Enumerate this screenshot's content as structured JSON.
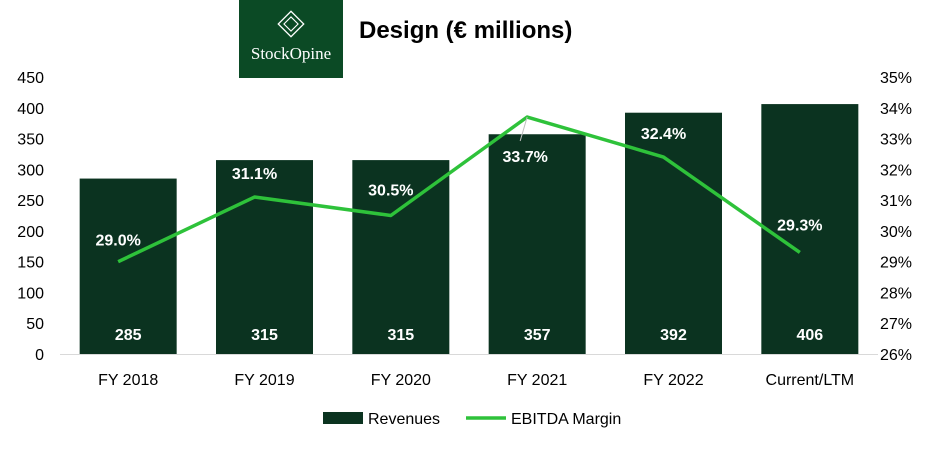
{
  "logo": {
    "text": "StockOpine",
    "icon": "diamond-icon"
  },
  "colors": {
    "bar": "#0b3320",
    "line": "#2ec23a",
    "logo_bg": "#0b4a25"
  },
  "chart_data": {
    "type": "bar",
    "title": "Design (€ millions)",
    "categories": [
      "FY 2018",
      "FY 2019",
      "FY 2020",
      "FY 2021",
      "FY 2022",
      "Current/LTM"
    ],
    "series": [
      {
        "name": "Revenues",
        "type": "bar",
        "axis": "left",
        "values": [
          285,
          315,
          315,
          357,
          392,
          406
        ],
        "labels": [
          "285",
          "315",
          "315",
          "357",
          "392",
          "406"
        ]
      },
      {
        "name": "EBITDA Margin",
        "type": "line",
        "axis": "right",
        "values": [
          29.0,
          31.1,
          30.5,
          33.7,
          32.4,
          29.3
        ],
        "labels": [
          "29.0%",
          "31.1%",
          "30.5%",
          "33.7%",
          "32.4%",
          "29.3%"
        ]
      }
    ],
    "ylim_left": [
      0,
      450
    ],
    "yticks_left": [
      "0",
      "50",
      "100",
      "150",
      "200",
      "250",
      "300",
      "350",
      "400",
      "450"
    ],
    "ylim_right": [
      26,
      35
    ],
    "yticks_right": [
      "26%",
      "27%",
      "28%",
      "29%",
      "30%",
      "31%",
      "32%",
      "33%",
      "34%",
      "35%"
    ],
    "grid": false,
    "legend": "bottom-center"
  }
}
